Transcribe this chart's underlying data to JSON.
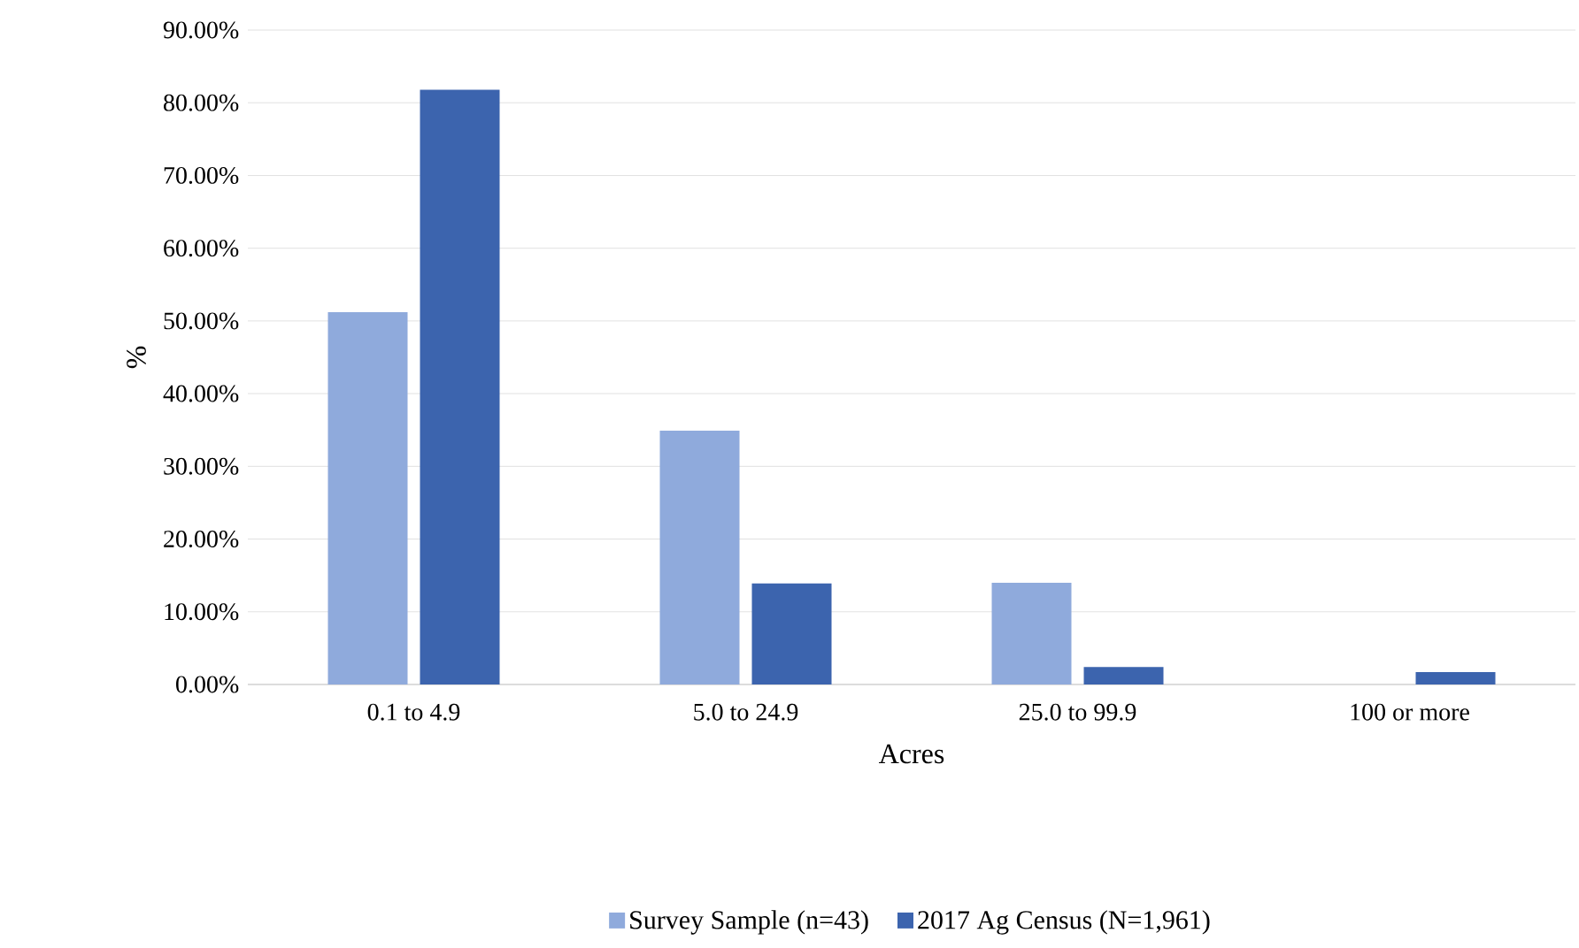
{
  "chart_data": {
    "type": "bar",
    "xlabel": "Acres",
    "ylabel": "%",
    "categories": [
      "0.1 to 4.9",
      "5.0 to 24.9",
      "25.0 to 99.9",
      "100 or more"
    ],
    "series": [
      {
        "name": "Survey Sample (n=43)",
        "color": "#8faadc",
        "values": [
          51.2,
          34.9,
          14.0,
          0
        ]
      },
      {
        "name": "2017 Ag Census (N=1,961)",
        "color": "#3c64ae",
        "values": [
          81.8,
          13.9,
          2.4,
          1.7
        ]
      }
    ],
    "ylim": [
      0,
      90
    ],
    "yticks": [
      {
        "value": 0,
        "label": "0.00%"
      },
      {
        "value": 10,
        "label": "10.00%"
      },
      {
        "value": 20,
        "label": "20.00%"
      },
      {
        "value": 30,
        "label": "30.00%"
      },
      {
        "value": 40,
        "label": "40.00%"
      },
      {
        "value": 50,
        "label": "50.00%"
      },
      {
        "value": 60,
        "label": "60.00%"
      },
      {
        "value": 70,
        "label": "70.00%"
      },
      {
        "value": 80,
        "label": "80.00%"
      },
      {
        "value": 90,
        "label": "90.00%"
      }
    ],
    "grid": "y",
    "legend": "bottom"
  }
}
